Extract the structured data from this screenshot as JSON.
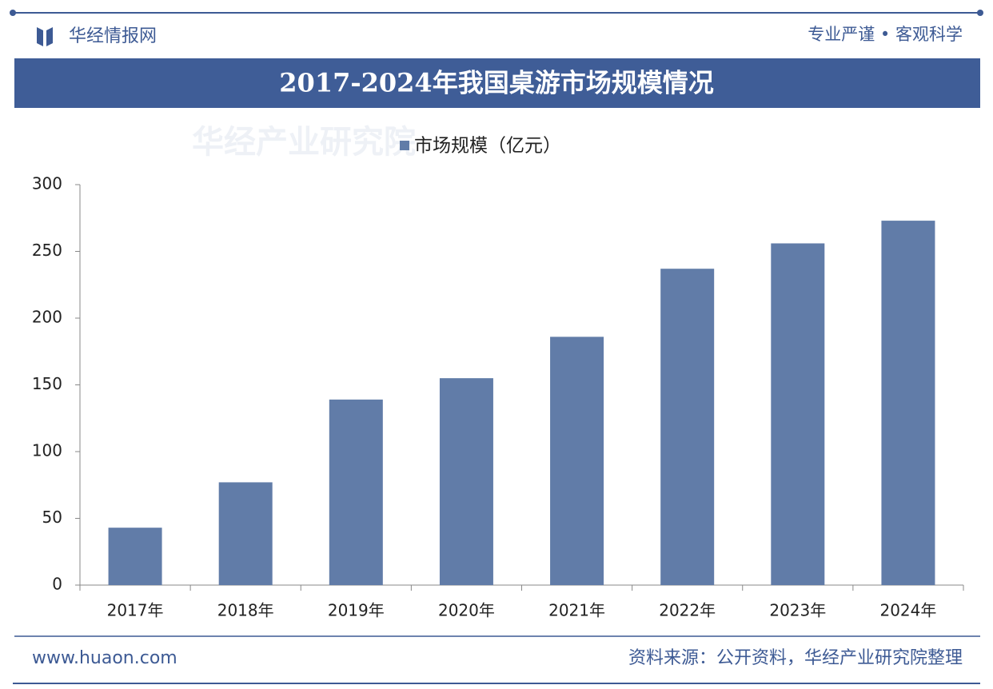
{
  "header": {
    "brand": "华经情报网",
    "slogan": "专业严谨 • 客观科学"
  },
  "footer": {
    "website": "www.huaon.com",
    "source": "资料来源：公开资料，华经产业研究院整理"
  },
  "watermark": "华经产业研究院",
  "chart_data": {
    "type": "bar",
    "title": "2017-2024年我国桌游市场规模情况",
    "categories": [
      "2017年",
      "2018年",
      "2019年",
      "2020年",
      "2021年",
      "2022年",
      "2023年",
      "2024年"
    ],
    "series": [
      {
        "name": "市场规模（亿元）",
        "color": "#617ca8",
        "values": [
          43,
          77,
          139,
          155,
          186,
          237,
          256,
          273
        ]
      }
    ],
    "ylim": [
      0,
      300
    ],
    "yticks": [
      0,
      50,
      100,
      150,
      200,
      250,
      300
    ],
    "grid": false,
    "legend": "top"
  }
}
